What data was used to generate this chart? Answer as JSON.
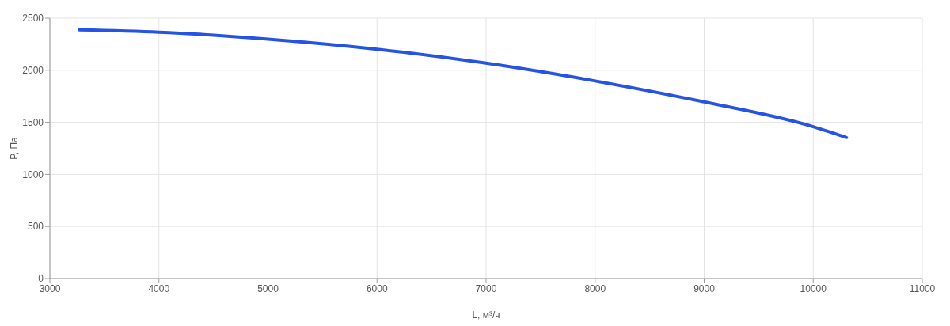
{
  "chart_data": {
    "type": "line",
    "xlabel": "L, м³/ч",
    "ylabel": "P, Па",
    "x": [
      3270,
      4000,
      5000,
      6000,
      7000,
      8000,
      9000,
      10000,
      10305
    ],
    "series": [
      {
        "color": "#2453e6",
        "values": [
          2388,
          2366,
          2299,
          2202,
          2068,
          1897,
          1696,
          1458,
          1354
        ]
      }
    ],
    "xlim": [
      3000,
      11000
    ],
    "xticks": [
      3000,
      4000,
      5000,
      6000,
      7000,
      8000,
      9000,
      10000,
      11000
    ],
    "ylim": [
      0,
      2500
    ],
    "yticks": [
      0,
      500,
      1000,
      1500,
      2000,
      2500
    ],
    "grid": true,
    "legend": false,
    "marker": "none",
    "line_style": "solid"
  }
}
